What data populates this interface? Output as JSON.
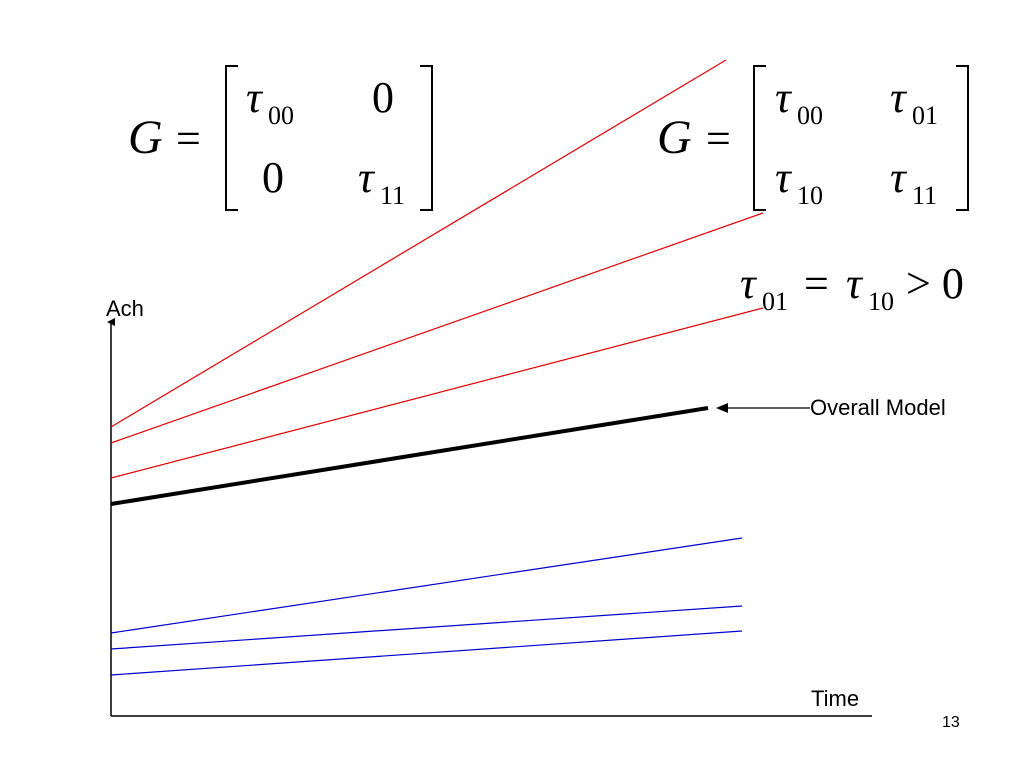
{
  "slide": {
    "page_number": "13",
    "colors": {
      "red_lines": "#e00000",
      "blue_lines": "#0000cc",
      "overall": "#000000",
      "axis": "#000000"
    }
  },
  "matrix_left": {
    "lhs": "G",
    "equals": "=",
    "cells": {
      "r0c0_base": "τ",
      "r0c0_sub": "00",
      "r0c1": "0",
      "r1c0": "0",
      "r1c1_base": "τ",
      "r1c1_sub": "11"
    }
  },
  "matrix_right": {
    "lhs": "G",
    "equals": "=",
    "cells": {
      "r0c0_base": "τ",
      "r0c0_sub": "00",
      "r0c1_base": "τ",
      "r0c1_sub": "01",
      "r1c0_base": "τ",
      "r1c0_sub": "10",
      "r1c1_base": "τ",
      "r1c1_sub": "11"
    }
  },
  "condition": {
    "a_base": "τ",
    "a_sub": "01",
    "eq": "=",
    "b_base": "τ",
    "b_sub": "10",
    "gt": "> 0"
  },
  "diagram": {
    "y_axis_label": "Ach",
    "x_axis_label": "Time",
    "callout_label": "Overall Model"
  }
}
